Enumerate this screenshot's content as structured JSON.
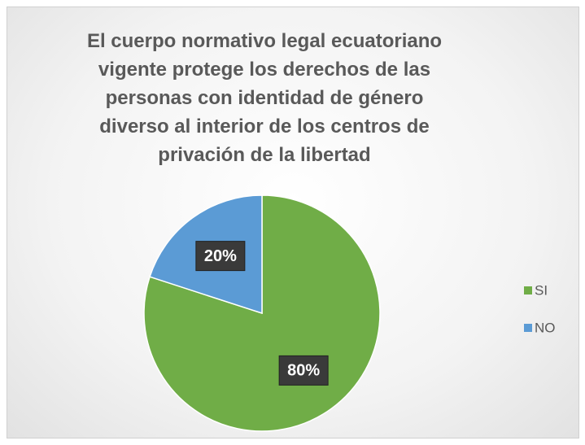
{
  "chart_data": {
    "type": "pie",
    "title": "El cuerpo normativo legal ecuatoriano vigente protege los derechos de las personas con identidad de género diverso al interior de los centros de privación de la libertad",
    "categories": [
      "SI",
      "NO"
    ],
    "values": [
      80,
      20
    ],
    "value_labels": [
      "80%",
      "20%"
    ],
    "colors": [
      "#70ad47",
      "#5b9bd5"
    ],
    "legend": "right"
  }
}
